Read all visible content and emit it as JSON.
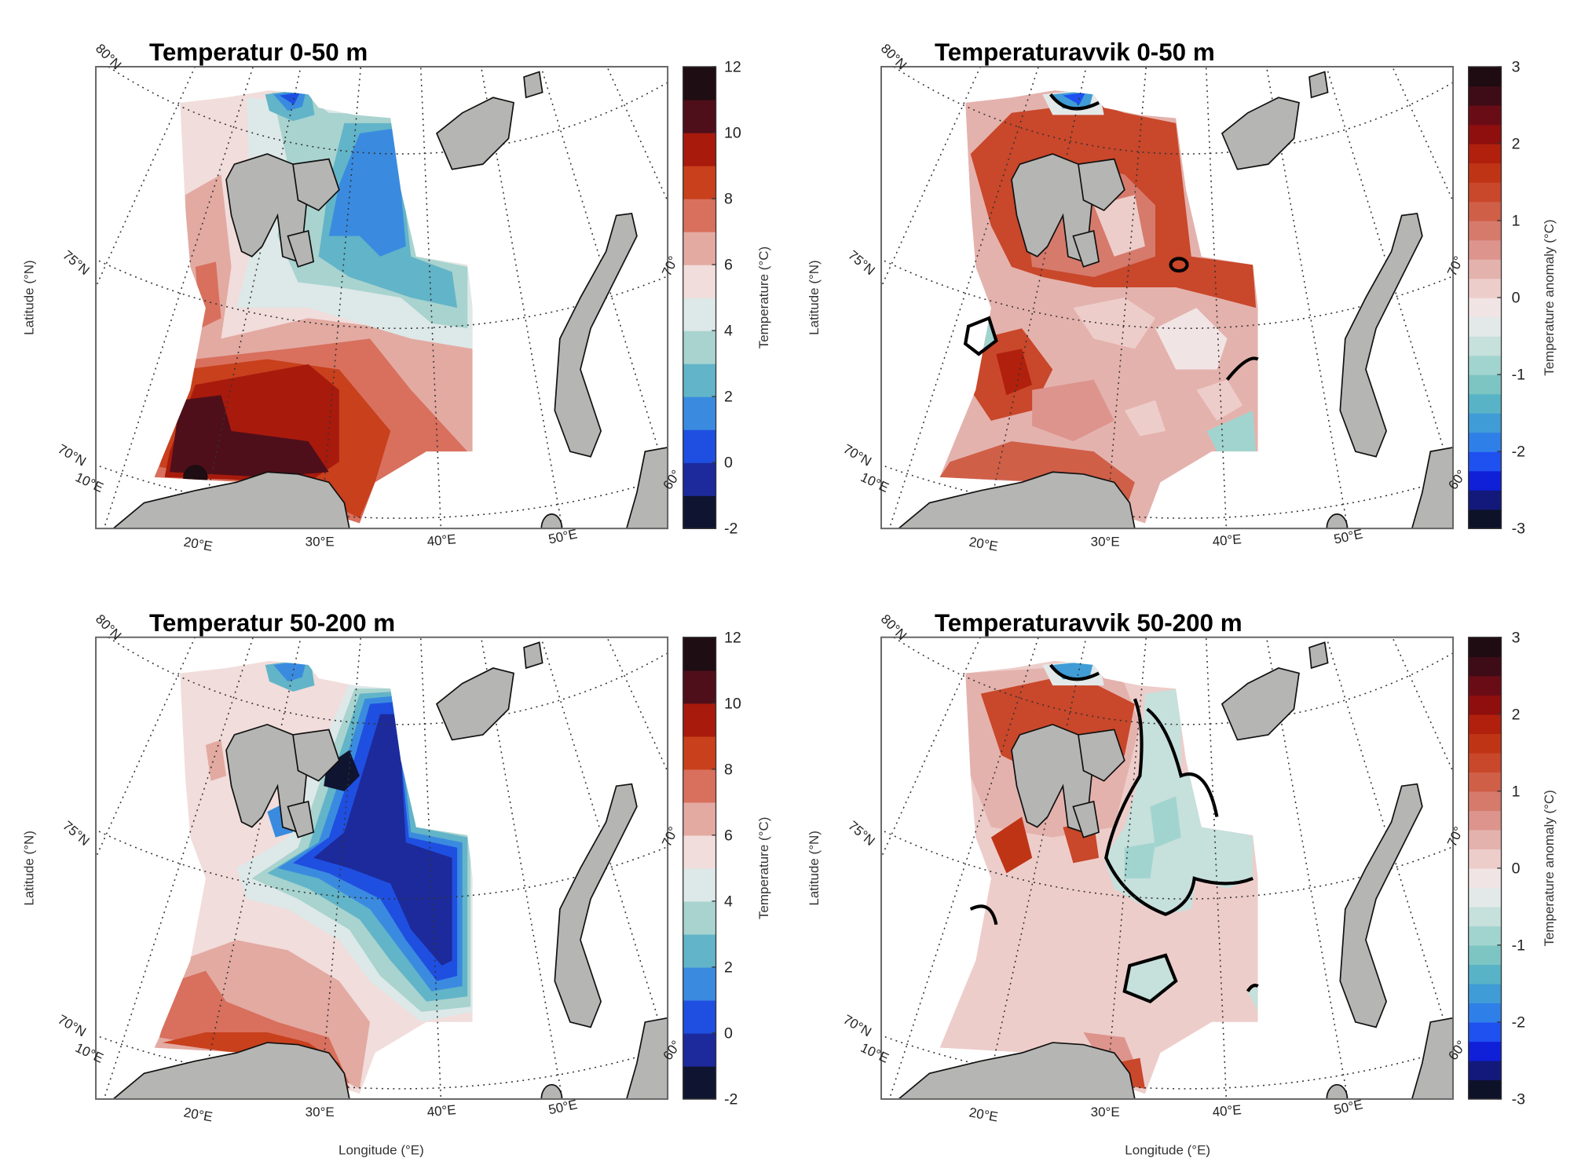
{
  "figure": {
    "xlabel": "Longitude (°E)",
    "ylabel": "Latitude (°N)",
    "lat_labels": [
      "80°N",
      "75°N",
      "70°N"
    ],
    "lon_labels": [
      "10°E",
      "20°E",
      "30°E",
      "40°E",
      "50°E"
    ],
    "edge_labels": [
      "70°",
      "60°"
    ],
    "land_color": "#b5b5b3",
    "grid_style": "dotted",
    "contour_line_color": "#000000"
  },
  "panels": [
    {
      "id": "temp-0-50",
      "title": "Temperatur 0-50 m",
      "colorbar": "temperature"
    },
    {
      "id": "anom-0-50",
      "title": "Temperaturavvik 0-50 m",
      "colorbar": "anomaly"
    },
    {
      "id": "temp-50-200",
      "title": "Temperatur 50-200 m",
      "colorbar": "temperature"
    },
    {
      "id": "anom-50-200",
      "title": "Temperaturavvik 50-200 m",
      "colorbar": "anomaly"
    }
  ],
  "colorbars": {
    "temperature": {
      "label": "Temperature (°C)",
      "range": [
        -2,
        12
      ],
      "step": 1,
      "ticks": [
        "-2",
        "0",
        "2",
        "4",
        "6",
        "8",
        "10",
        "12"
      ],
      "colors": [
        "#0f1530",
        "#1c2a9c",
        "#1f4fe0",
        "#3a8be0",
        "#62b4c8",
        "#a8d3cf",
        "#dde8e8",
        "#f1dddb",
        "#e3aaa2",
        "#d8705d",
        "#c8401c",
        "#a81a0c",
        "#4f0f1a",
        "#1e0d12"
      ]
    },
    "anomaly": {
      "label": "Temperature anomaly (°C)",
      "range": [
        -3,
        3
      ],
      "step": 0.25,
      "ticks": [
        "-3",
        "-2",
        "-1",
        "0",
        "1",
        "2",
        "3"
      ],
      "colors": [
        "#0d1229",
        "#13197a",
        "#1020d8",
        "#1f50f0",
        "#2f7fe8",
        "#3f9cd6",
        "#58b3c6",
        "#7cc5c3",
        "#a2d4cf",
        "#c6e0dc",
        "#e3e9e9",
        "#f1e4e4",
        "#edcdca",
        "#e4b2ad",
        "#dc948c",
        "#d67a6c",
        "#d05f48",
        "#c9472a",
        "#c03416",
        "#b0200c",
        "#8e0f0e",
        "#6a0c16",
        "#3e0c17",
        "#1e0c12"
      ]
    }
  }
}
